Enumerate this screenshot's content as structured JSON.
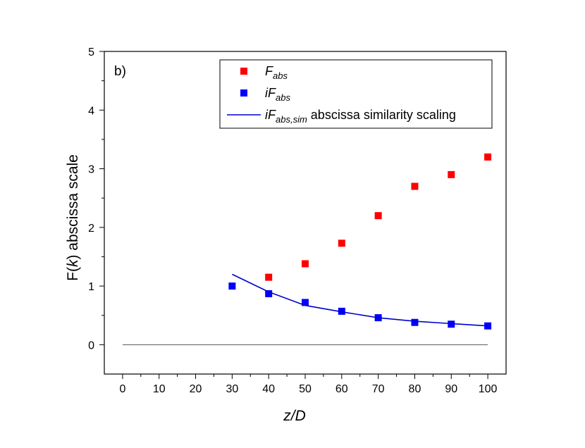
{
  "chart_data": {
    "type": "scatter",
    "panel_label": "b)",
    "xlabel": {
      "main": "z/D"
    },
    "ylabel": {
      "pre": "F(",
      "var": "k",
      "post": ") abscissa scale"
    },
    "xlim": [
      -5,
      105
    ],
    "ylim": [
      -0.5,
      5
    ],
    "x_ticks": [
      0,
      10,
      20,
      30,
      40,
      50,
      60,
      70,
      80,
      90,
      100
    ],
    "y_ticks": [
      0,
      1,
      2,
      3,
      4,
      5
    ],
    "reference_line": {
      "y": 0,
      "x_start": 0,
      "x_end": 100,
      "color": "#555555"
    },
    "series": [
      {
        "name": "F_abs",
        "legend": {
          "main": "F",
          "sub": "abs",
          "suffix": ""
        },
        "kind": "markers",
        "marker": "square",
        "color": "#ff0000",
        "x": [
          40,
          50,
          60,
          70,
          80,
          90,
          100
        ],
        "y": [
          1.15,
          1.38,
          1.73,
          2.2,
          2.7,
          2.9,
          3.2
        ]
      },
      {
        "name": "iF_abs",
        "legend": {
          "main": "iF",
          "sub": "abs",
          "suffix": ""
        },
        "kind": "markers",
        "marker": "square",
        "color": "#0000ff",
        "x": [
          30,
          40,
          50,
          60,
          70,
          80,
          90,
          100
        ],
        "y": [
          1.0,
          0.87,
          0.72,
          0.57,
          0.46,
          0.38,
          0.35,
          0.32
        ]
      },
      {
        "name": "iF_abs,sim abscissa similarity scaling",
        "legend": {
          "main": "iF",
          "sub": "abs,sim",
          "suffix": " abscissa similarity scaling"
        },
        "kind": "line",
        "color": "#0000cc",
        "x": [
          30,
          40,
          50,
          60,
          70,
          80,
          90,
          100
        ],
        "y": [
          1.2,
          0.9,
          0.67,
          0.56,
          0.46,
          0.4,
          0.36,
          0.32
        ]
      }
    ]
  }
}
